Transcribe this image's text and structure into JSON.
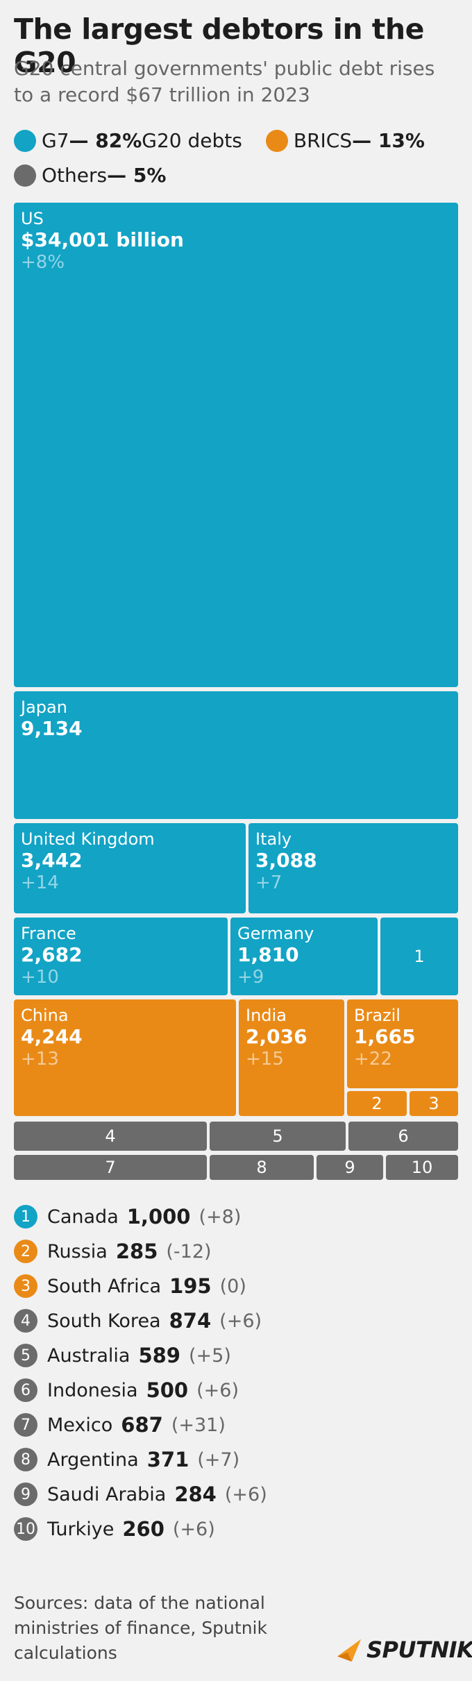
{
  "title": "The largest debtors in the G20",
  "subtitle": "G20 central governments' public debt rises to a record $67 trillion in 2023",
  "colors": {
    "g7": "#12a3c5",
    "brics": "#e98a17",
    "others": "#6b6b6b"
  },
  "legend": [
    {
      "key": "g7",
      "label": "G7",
      "share": "— 82%",
      "suffix": "G20 debts"
    },
    {
      "key": "brics",
      "label": "BRICS",
      "share": "— 13%",
      "suffix": ""
    },
    {
      "key": "others",
      "label": "Others",
      "share": "— 5%",
      "suffix": ""
    }
  ],
  "chart_data": {
    "type": "treemap",
    "unit": "billion",
    "tiles": [
      {
        "name": "US",
        "value": 34001,
        "display": "$34,001 billion",
        "change": "+8%",
        "group": "g7"
      },
      {
        "name": "Japan",
        "value": 9134,
        "display": "9,134",
        "change": "",
        "group": "g7"
      },
      {
        "name": "United Kingdom",
        "value": 3442,
        "display": "3,442",
        "change": "+14",
        "group": "g7"
      },
      {
        "name": "Italy",
        "value": 3088,
        "display": "3,088",
        "change": "+7",
        "group": "g7"
      },
      {
        "name": "France",
        "value": 2682,
        "display": "2,682",
        "change": "+10",
        "group": "g7"
      },
      {
        "name": "Germany",
        "value": 1810,
        "display": "1,810",
        "change": "+9",
        "group": "g7"
      },
      {
        "name": "1",
        "value": 1000,
        "group": "g7"
      },
      {
        "name": "China",
        "value": 4244,
        "display": "4,244",
        "change": "+13",
        "group": "brics"
      },
      {
        "name": "India",
        "value": 2036,
        "display": "2,036",
        "change": "+15",
        "group": "brics"
      },
      {
        "name": "Brazil",
        "value": 1665,
        "display": "1,665",
        "change": "+22",
        "group": "brics"
      },
      {
        "name": "2",
        "value": 285,
        "group": "brics"
      },
      {
        "name": "3",
        "value": 195,
        "group": "brics"
      },
      {
        "name": "4",
        "value": 874,
        "group": "others"
      },
      {
        "name": "5",
        "value": 589,
        "group": "others"
      },
      {
        "name": "6",
        "value": 500,
        "group": "others"
      },
      {
        "name": "7",
        "value": 687,
        "group": "others"
      },
      {
        "name": "8",
        "value": 371,
        "group": "others"
      },
      {
        "name": "9",
        "value": 284,
        "group": "others"
      },
      {
        "name": "10",
        "value": 260,
        "group": "others"
      }
    ]
  },
  "list": [
    {
      "num": "1",
      "name": "Canada",
      "value": "1,000",
      "change": "(+8)",
      "group": "g7"
    },
    {
      "num": "2",
      "name": "Russia",
      "value": "285",
      "change": "(-12)",
      "group": "brics"
    },
    {
      "num": "3",
      "name": "South Africa",
      "value": "195",
      "change": "(0)",
      "group": "brics"
    },
    {
      "num": "4",
      "name": "South Korea",
      "value": "874",
      "change": "(+6)",
      "group": "others"
    },
    {
      "num": "5",
      "name": "Australia",
      "value": "589",
      "change": "(+5)",
      "group": "others"
    },
    {
      "num": "6",
      "name": "Indonesia",
      "value": "500",
      "change": "(+6)",
      "group": "others"
    },
    {
      "num": "7",
      "name": "Mexico",
      "value": "687",
      "change": "(+31)",
      "group": "others"
    },
    {
      "num": "8",
      "name": "Argentina",
      "value": "371",
      "change": "(+7)",
      "group": "others"
    },
    {
      "num": "9",
      "name": "Saudi Arabia",
      "value": "284",
      "change": "(+6)",
      "group": "others"
    },
    {
      "num": "10",
      "name": "Turkiye",
      "value": "260",
      "change": "(+6)",
      "group": "others"
    }
  ],
  "sources": "Sources: data of the national ministries of finance, Sputnik calculations",
  "brand": "SPUTNIK"
}
